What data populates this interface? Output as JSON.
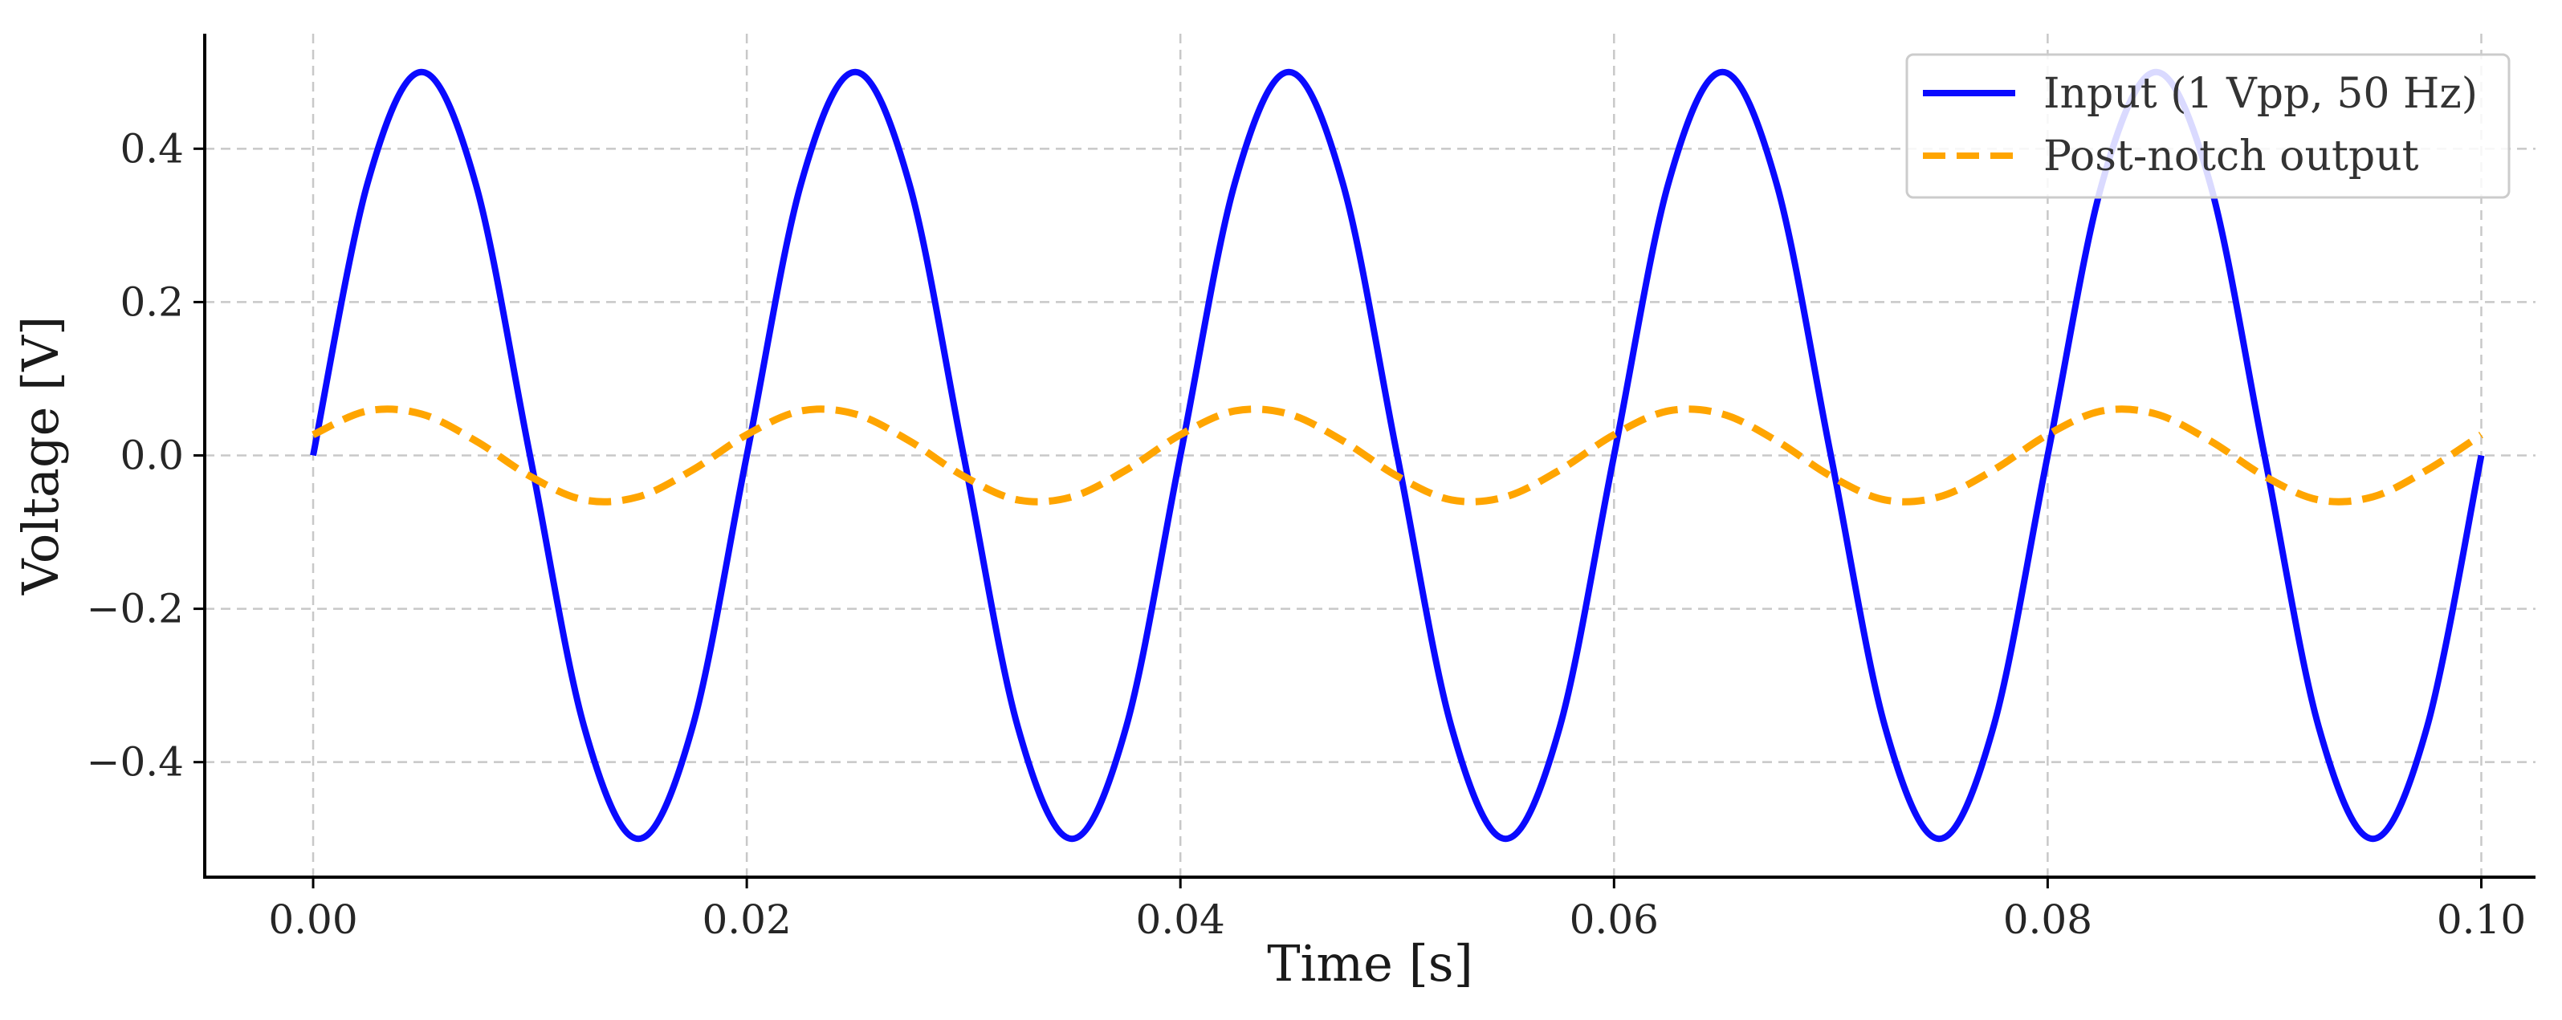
{
  "chart_data": {
    "type": "line",
    "title": "",
    "xlabel": "Time [s]",
    "ylabel": "Voltage [V]",
    "xlim": [
      -0.005,
      0.1025
    ],
    "ylim": [
      -0.55,
      0.55
    ],
    "x_ticks": [
      0.0,
      0.02,
      0.04,
      0.06,
      0.08,
      0.1
    ],
    "x_tick_labels": [
      "0.00",
      "0.02",
      "0.04",
      "0.06",
      "0.08",
      "0.10"
    ],
    "y_ticks": [
      -0.4,
      -0.2,
      0.0,
      0.2,
      0.4
    ],
    "y_tick_labels": [
      "−0.4",
      "−0.2",
      "0.0",
      "0.2",
      "0.4"
    ],
    "grid": true,
    "legend_position": "top-right",
    "series": [
      {
        "name": "Input (1 Vpp, 50 Hz)",
        "color": "#0a0aff",
        "line_style": "solid",
        "x": [
          0.0,
          0.0025,
          0.005,
          0.0075,
          0.01,
          0.0125,
          0.015,
          0.0175,
          0.02,
          0.0225,
          0.025,
          0.0275,
          0.03,
          0.0325,
          0.035,
          0.0375,
          0.04,
          0.0425,
          0.045,
          0.0475,
          0.05,
          0.0525,
          0.055,
          0.0575,
          0.06,
          0.0625,
          0.065,
          0.0675,
          0.07,
          0.0725,
          0.075,
          0.0775,
          0.08,
          0.0825,
          0.085,
          0.0875,
          0.09,
          0.0925,
          0.095,
          0.0975,
          0.1
        ],
        "values": [
          0.0,
          0.354,
          0.5,
          0.354,
          0.0,
          -0.354,
          -0.5,
          -0.354,
          0.0,
          0.354,
          0.5,
          0.354,
          0.0,
          -0.354,
          -0.5,
          -0.354,
          0.0,
          0.354,
          0.5,
          0.354,
          0.0,
          -0.354,
          -0.5,
          -0.354,
          0.0,
          0.354,
          0.5,
          0.354,
          0.0,
          -0.354,
          -0.5,
          -0.354,
          0.0,
          0.354,
          0.5,
          0.354,
          0.0,
          -0.354,
          -0.5,
          -0.354,
          0.0
        ]
      },
      {
        "name": "Post-notch output",
        "color": "#ffa500",
        "line_style": "dashed",
        "x": [
          0.0,
          0.0025,
          0.005,
          0.0075,
          0.01,
          0.0125,
          0.015,
          0.0175,
          0.02,
          0.0225,
          0.025,
          0.0275,
          0.03,
          0.0325,
          0.035,
          0.0375,
          0.04,
          0.0425,
          0.045,
          0.0475,
          0.05,
          0.0525,
          0.055,
          0.0575,
          0.06,
          0.0625,
          0.065,
          0.0675,
          0.07,
          0.0725,
          0.075,
          0.0775,
          0.08,
          0.0825,
          0.085,
          0.0875,
          0.09,
          0.0925,
          0.095,
          0.0975,
          0.1
        ],
        "values": [
          0.027,
          0.058,
          0.054,
          0.019,
          -0.027,
          -0.058,
          -0.054,
          -0.019,
          0.027,
          0.058,
          0.054,
          0.019,
          -0.027,
          -0.058,
          -0.054,
          -0.019,
          0.027,
          0.058,
          0.054,
          0.019,
          -0.027,
          -0.058,
          -0.054,
          -0.019,
          0.027,
          0.058,
          0.054,
          0.019,
          -0.027,
          -0.058,
          -0.054,
          -0.019,
          0.027,
          0.058,
          0.054,
          0.019,
          -0.027,
          -0.058,
          -0.054,
          -0.019,
          0.027
        ]
      }
    ]
  }
}
